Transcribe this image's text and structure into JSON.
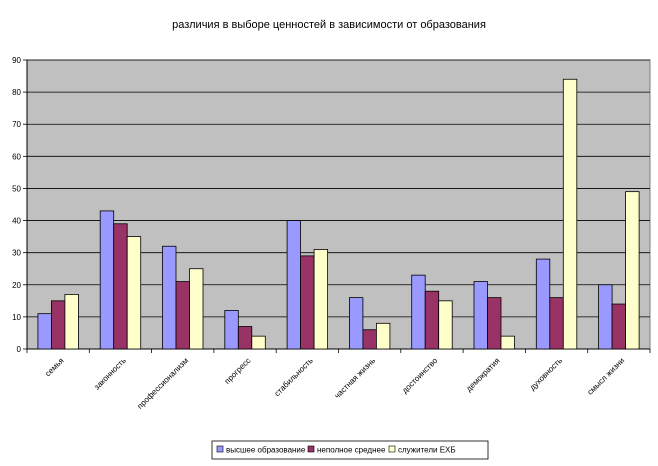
{
  "chart_data": {
    "type": "bar",
    "title": "различия в выборе ценностей в зависимости от образования",
    "xlabel": "",
    "ylabel": "",
    "ylim": [
      0,
      90
    ],
    "ytick_step": 10,
    "grid": true,
    "legend_position": "bottom",
    "categories": [
      "семья",
      "законность",
      "профессионализм",
      "прогресс",
      "стабильность",
      "частная жизнь",
      "достоинство",
      "демократия",
      "духовность",
      "смысл жизни"
    ],
    "series": [
      {
        "name": "высшее образование",
        "color": "#9999FF",
        "values": [
          11,
          43,
          32,
          12,
          40,
          16,
          23,
          21,
          28,
          20
        ]
      },
      {
        "name": "неполное среднее",
        "color": "#993366",
        "values": [
          15,
          39,
          21,
          7,
          29,
          6,
          18,
          16,
          16,
          14
        ]
      },
      {
        "name": "служители ЕХБ",
        "color": "#FFFFCC",
        "values": [
          17,
          35,
          25,
          4,
          31,
          8,
          15,
          4,
          84,
          49
        ]
      }
    ],
    "plot_background": "#C0C0C0"
  }
}
